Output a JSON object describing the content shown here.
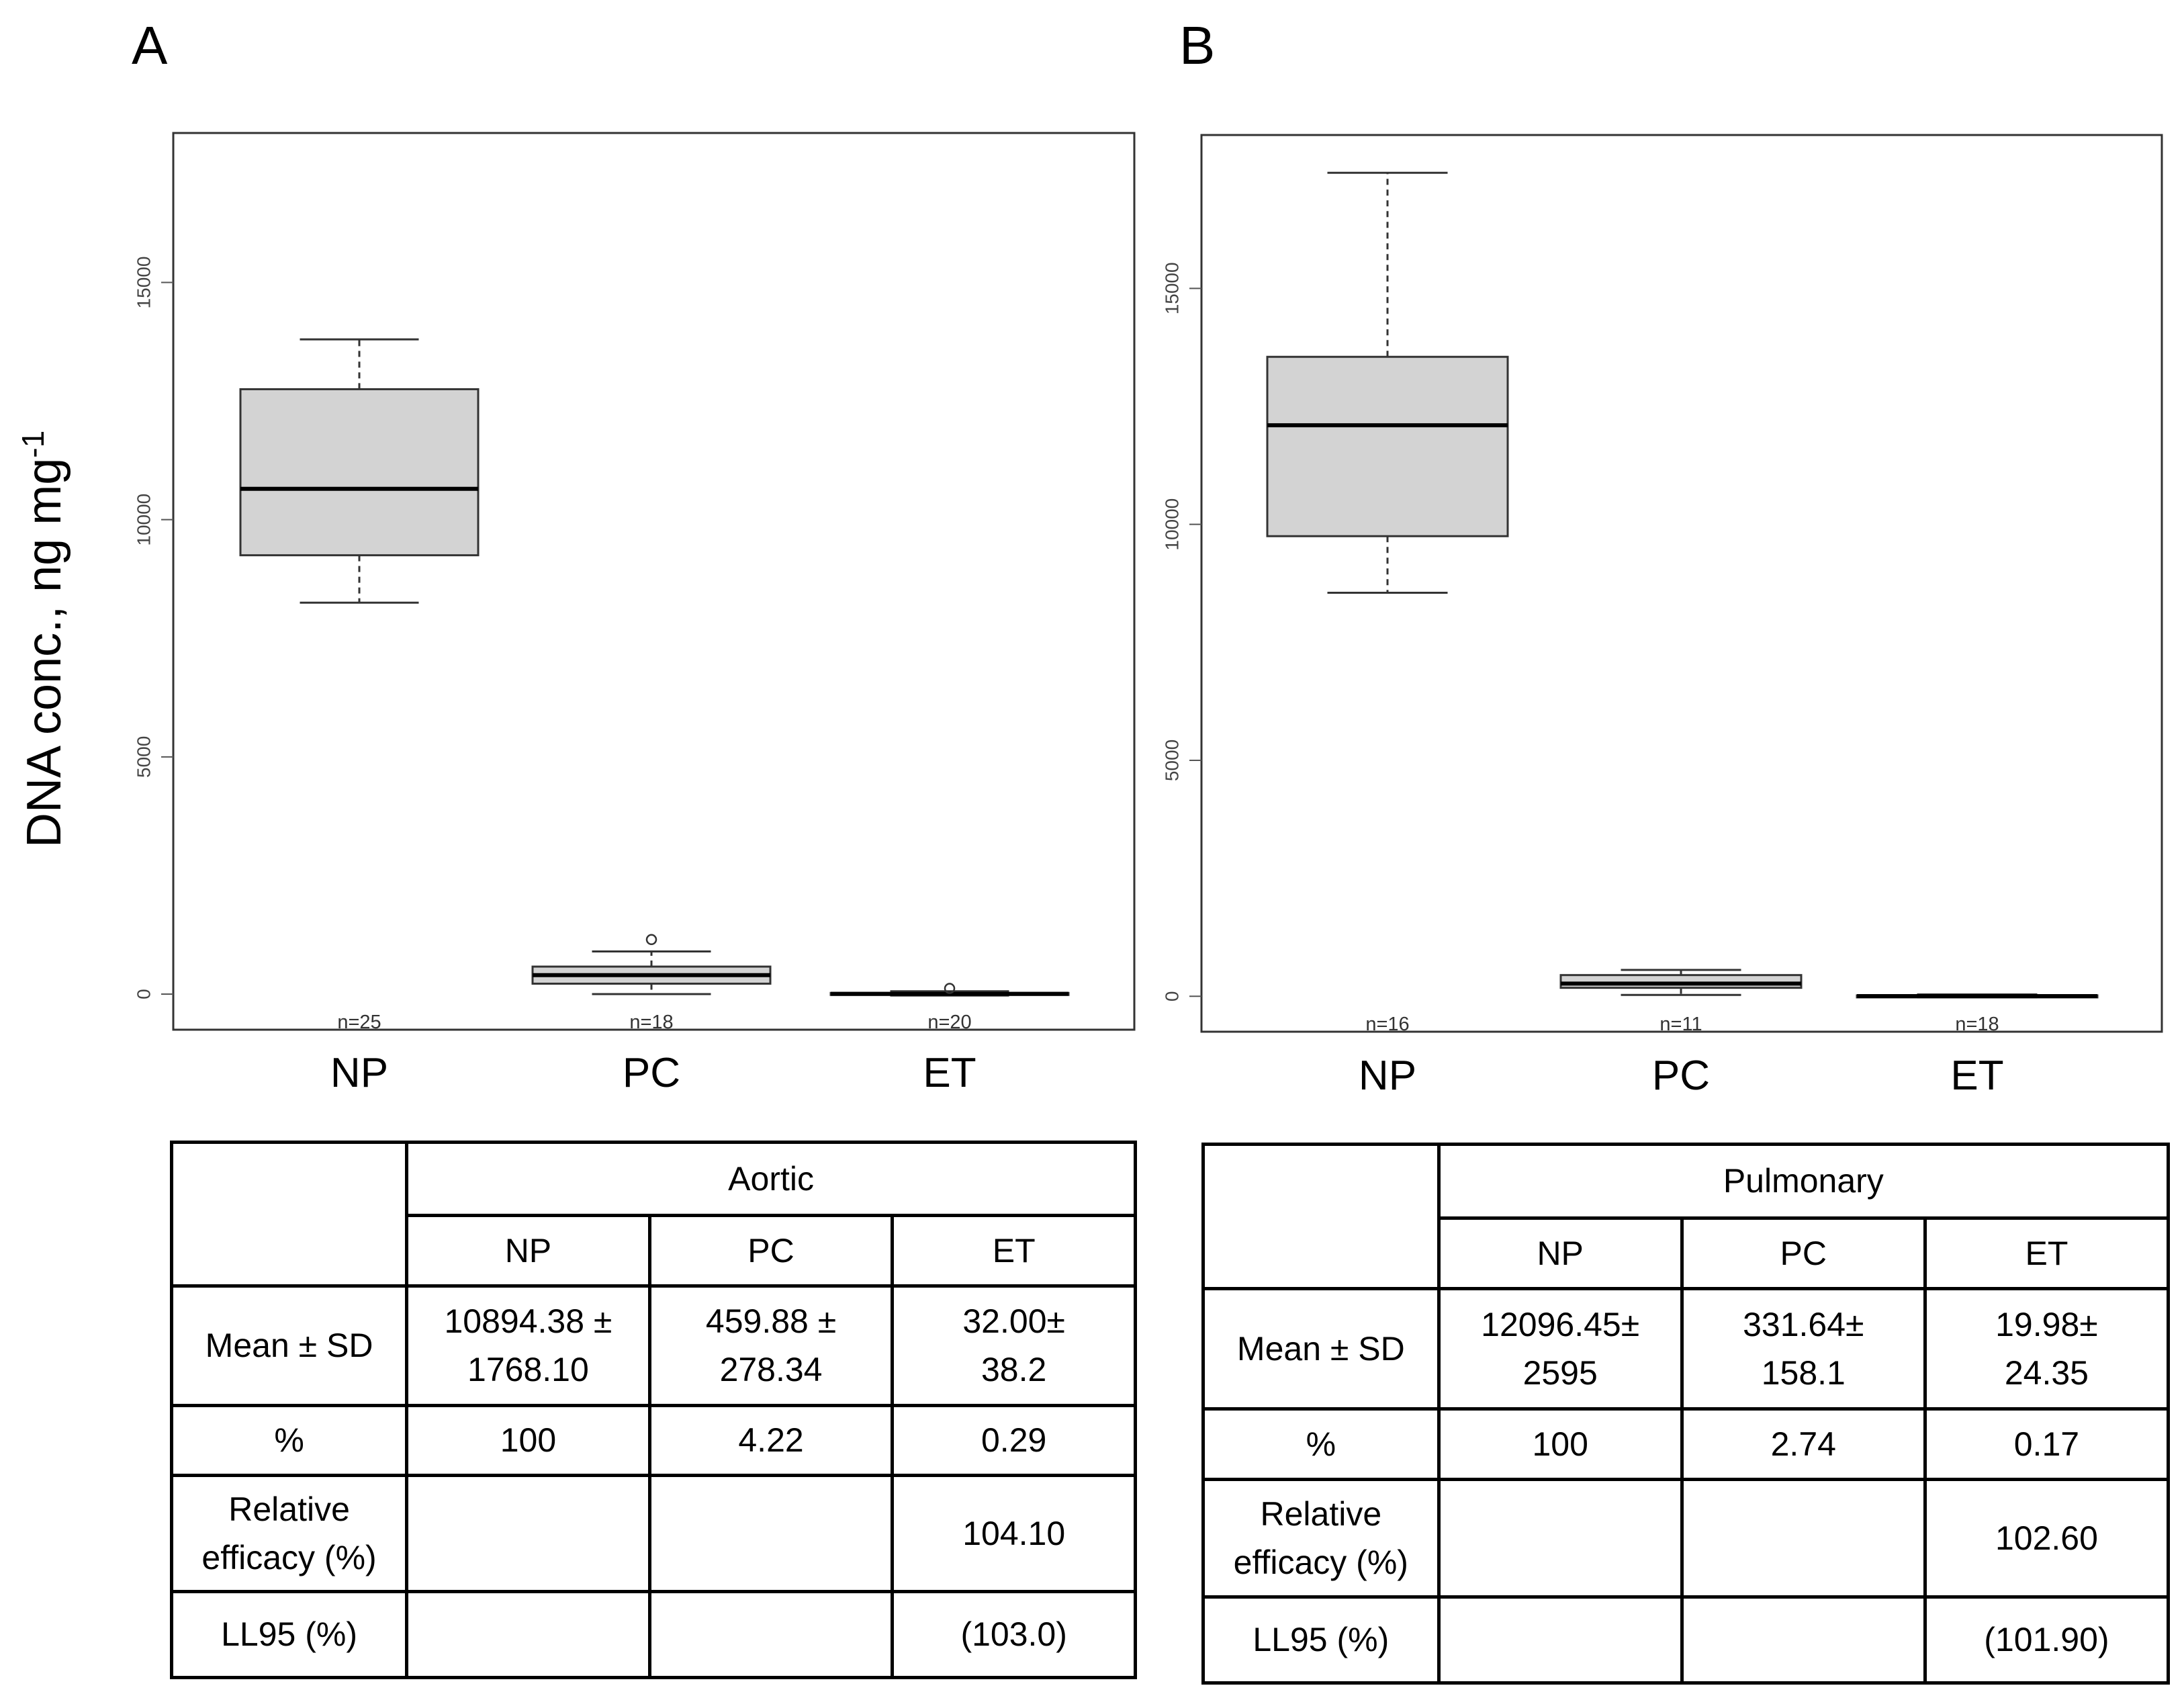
{
  "y_axis_label": "DNA conc., ng mg",
  "y_axis_label_sup": "-1",
  "chart_data": [
    {
      "panel": "A",
      "type": "boxplot",
      "categories": [
        "NP",
        "PC",
        "ET"
      ],
      "counts": [
        "n=25",
        "n=18",
        "n=20"
      ],
      "yticks": [
        0,
        5000,
        10000,
        15000
      ],
      "ylim": [
        -750,
        18150
      ],
      "box_fill": "#d3d3d3",
      "boxes": [
        {
          "category": "NP",
          "whisker_low": 8250,
          "q1": 9250,
          "median": 10650,
          "q3": 12750,
          "whisker_high": 13800,
          "outliers": []
        },
        {
          "category": "PC",
          "whisker_low": 0,
          "q1": 220,
          "median": 400,
          "q3": 580,
          "whisker_high": 900,
          "outliers": [
            1150
          ]
        },
        {
          "category": "ET",
          "whisker_low": -30,
          "q1": -10,
          "median": 5,
          "q3": 25,
          "whisker_high": 60,
          "outliers": [
            120
          ]
        }
      ],
      "table": {
        "group_header": "Aortic",
        "columns": [
          "NP",
          "PC",
          "ET"
        ],
        "rows": [
          {
            "label": "Mean ± SD",
            "cells": [
              [
                "10894.38 ±",
                "1768.10"
              ],
              [
                "459.88 ±",
                "278.34"
              ],
              [
                "32.00±",
                "38.2"
              ]
            ]
          },
          {
            "label": "%",
            "cells": [
              [
                "100"
              ],
              [
                "4.22"
              ],
              [
                "0.29"
              ]
            ]
          },
          {
            "label": "Relative efficacy (%)",
            "label_lines": [
              "Relative",
              "efficacy (%)"
            ],
            "cells": [
              [],
              [],
              [
                "104.10"
              ]
            ]
          },
          {
            "label": "LL95 (%)",
            "cells": [
              [],
              [],
              [
                "(103.0)"
              ]
            ]
          }
        ]
      }
    },
    {
      "panel": "B",
      "type": "boxplot",
      "categories": [
        "NP",
        "PC",
        "ET"
      ],
      "counts": [
        "n=16",
        "n=11",
        "n=18"
      ],
      "yticks": [
        0,
        5000,
        10000,
        15000
      ],
      "ylim": [
        -750,
        18250
      ],
      "box_fill": "#d3d3d3",
      "boxes": [
        {
          "category": "NP",
          "whisker_low": 8550,
          "q1": 9750,
          "median": 12100,
          "q3": 13550,
          "whisker_high": 17450,
          "outliers": []
        },
        {
          "category": "PC",
          "whisker_low": 30,
          "q1": 180,
          "median": 270,
          "q3": 450,
          "whisker_high": 560,
          "outliers": []
        },
        {
          "category": "ET",
          "whisker_low": -20,
          "q1": -10,
          "median": 5,
          "q3": 20,
          "whisker_high": 40,
          "outliers": []
        }
      ],
      "table": {
        "group_header": "Pulmonary",
        "columns": [
          "NP",
          "PC",
          "ET"
        ],
        "rows": [
          {
            "label": "Mean ± SD",
            "cells": [
              [
                "12096.45±",
                "2595"
              ],
              [
                "331.64±",
                "158.1"
              ],
              [
                "19.98±",
                "24.35"
              ]
            ]
          },
          {
            "label": "%",
            "cells": [
              [
                "100"
              ],
              [
                "2.74"
              ],
              [
                "0.17"
              ]
            ]
          },
          {
            "label": "Relative efficacy (%)",
            "label_lines": [
              "Relative",
              "efficacy (%)"
            ],
            "cells": [
              [],
              [],
              [
                "102.60"
              ]
            ]
          },
          {
            "label": "LL95 (%)",
            "cells": [
              [],
              [],
              [
                "(101.90)"
              ]
            ]
          }
        ]
      }
    }
  ]
}
